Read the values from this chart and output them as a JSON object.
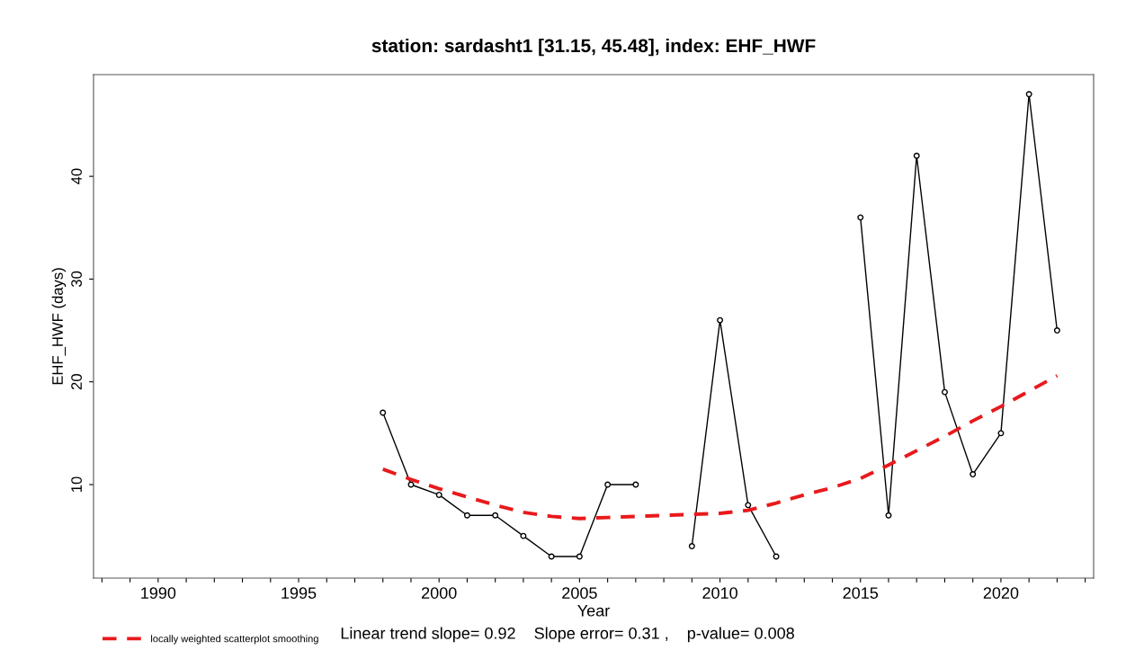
{
  "chart_data": {
    "type": "line",
    "title": "station: sardasht1 [31.15, 45.48], index: EHF_HWF",
    "xlabel": "Year",
    "ylabel": "EHF_HWF (days)",
    "x": [
      1998,
      1999,
      2000,
      2001,
      2002,
      2003,
      2004,
      2005,
      2006,
      2007,
      2008,
      2009,
      2010,
      2011,
      2012,
      2013,
      2014,
      2015,
      2016,
      2017,
      2018,
      2019,
      2020,
      2021,
      2022
    ],
    "series": [
      {
        "color": "#000000",
        "marker": "circle",
        "line_style": "solid",
        "values": [
          17,
          10,
          9,
          7,
          7,
          5,
          3,
          3,
          10,
          10,
          null,
          4,
          26,
          8,
          3,
          null,
          null,
          36,
          7,
          42,
          19,
          11,
          15,
          48,
          25
        ]
      },
      {
        "name": "locally weighted scatterplot smoothing",
        "color": "#e8191c",
        "marker": "none",
        "line_style": "dashed",
        "values": [
          11.5,
          10.5,
          9.6,
          8.8,
          8.0,
          7.3,
          6.9,
          6.7,
          6.8,
          6.9,
          7.0,
          7.1,
          7.2,
          7.5,
          8.2,
          9.0,
          9.7,
          10.6,
          11.9,
          13.3,
          14.7,
          16.2,
          17.6,
          19.1,
          20.6
        ]
      }
    ],
    "xlim": [
      1987.7,
      2023.3
    ],
    "ylim": [
      0.9,
      49.9
    ],
    "xticks": [
      {
        "value": 1988,
        "label": null
      },
      {
        "value": 1989,
        "label": null
      },
      1990,
      {
        "value": 1991,
        "label": null
      },
      {
        "value": 1992,
        "label": null
      },
      {
        "value": 1993,
        "label": null
      },
      {
        "value": 1994,
        "label": null
      },
      1995,
      {
        "value": 1996,
        "label": null
      },
      {
        "value": 1997,
        "label": null
      },
      {
        "value": 1998,
        "label": null
      },
      {
        "value": 1999,
        "label": null
      },
      2000,
      {
        "value": 2001,
        "label": null
      },
      {
        "value": 2002,
        "label": null
      },
      {
        "value": 2003,
        "label": null
      },
      {
        "value": 2004,
        "label": null
      },
      2005,
      {
        "value": 2006,
        "label": null
      },
      {
        "value": 2007,
        "label": null
      },
      {
        "value": 2008,
        "label": null
      },
      {
        "value": 2009,
        "label": null
      },
      2010,
      {
        "value": 2011,
        "label": null
      },
      {
        "value": 2012,
        "label": null
      },
      {
        "value": 2013,
        "label": null
      },
      {
        "value": 2014,
        "label": null
      },
      2015,
      {
        "value": 2016,
        "label": null
      },
      {
        "value": 2017,
        "label": null
      },
      {
        "value": 2018,
        "label": null
      },
      {
        "value": 2019,
        "label": null
      },
      2020,
      {
        "value": 2021,
        "label": null
      },
      {
        "value": 2022,
        "label": null
      },
      {
        "value": 2023,
        "label": null
      }
    ],
    "yticks": [
      10,
      20,
      30,
      40
    ],
    "grid": false,
    "legend": "bottom left",
    "annotations": [
      "Linear trend slope= 0.92    Slope error= 0.31 ,    p-value= 0.008"
    ]
  }
}
